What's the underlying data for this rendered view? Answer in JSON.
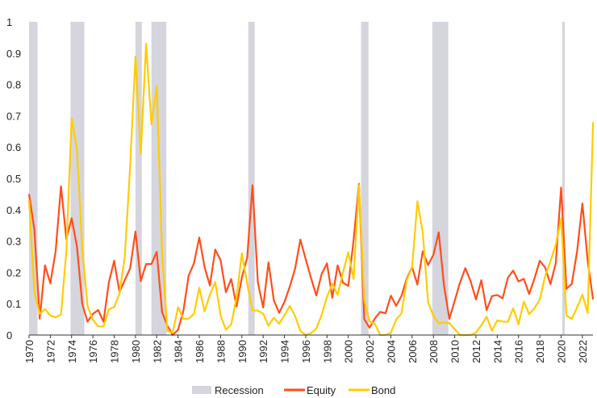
{
  "chart_data": {
    "type": "line",
    "title": "",
    "xlabel": "",
    "ylabel": "",
    "xlim": [
      1970,
      2023.2
    ],
    "ylim": [
      0,
      1
    ],
    "yticks": [
      "0",
      "0.1",
      "0.2",
      "0.3",
      "0.4",
      "0.5",
      "0.6",
      "0.7",
      "0.8",
      "0.9",
      "1"
    ],
    "xticks": [
      "1970",
      "1972",
      "1974",
      "1976",
      "1978",
      "1980",
      "1982",
      "1984",
      "1986",
      "1988",
      "1990",
      "1992",
      "1994",
      "1996",
      "1998",
      "2000",
      "2002",
      "2004",
      "2006",
      "2008",
      "2010",
      "2012",
      "2014",
      "2016",
      "2018",
      "2020",
      "2022"
    ],
    "grid": false,
    "legend_position": "bottom-center",
    "x_start": 1970,
    "x_step": 0.5,
    "recessions": {
      "name": "Recession",
      "color": "#d5d5de",
      "periods": [
        [
          1970.0,
          1970.8
        ],
        [
          1973.9,
          1975.2
        ],
        [
          1980.0,
          1980.6
        ],
        [
          1981.5,
          1982.9
        ],
        [
          1990.6,
          1991.2
        ],
        [
          2001.2,
          2001.9
        ],
        [
          2007.9,
          2009.4
        ],
        [
          2020.1,
          2020.35
        ]
      ]
    },
    "series": [
      {
        "name": "Equity",
        "color": "#ff4e1a",
        "values": [
          0.45,
          0.3,
          0.05,
          0.2,
          0.15,
          0.25,
          0.45,
          0.3,
          0.4,
          0.3,
          0.1,
          0.05,
          0.1,
          0.08,
          0.05,
          0.15,
          0.2,
          0.12,
          0.15,
          0.2,
          0.3,
          0.15,
          0.2,
          0.25,
          0.3,
          0.1,
          0.05,
          0.02,
          0.05,
          0.1,
          0.15,
          0.2,
          0.3,
          0.2,
          0.15,
          0.25,
          0.2,
          0.1,
          0.2,
          0.1,
          0.2,
          0.25,
          0.5,
          0.2,
          0.1,
          0.2,
          0.1,
          0.05,
          0.1,
          0.15,
          0.2,
          0.3,
          0.25,
          0.2,
          0.15,
          0.2,
          0.25,
          0.15,
          0.25,
          0.2,
          0.15,
          0.3,
          0.45,
          0.05,
          0.02,
          0.05,
          0.05,
          0.1,
          0.15,
          0.12,
          0.15,
          0.2,
          0.25,
          0.2,
          0.3,
          0.2,
          0.25,
          0.3,
          0.15,
          0.05,
          0.08,
          0.15,
          0.25,
          0.2,
          0.15,
          0.2,
          0.1,
          0.15,
          0.15,
          0.12,
          0.15,
          0.2,
          0.15,
          0.15,
          0.1,
          0.15,
          0.2,
          0.25,
          0.2,
          0.25,
          0.5,
          0.15,
          0.2,
          0.3,
          0.4,
          0.2,
          0.1
        ]
      },
      {
        "name": "Bond",
        "color": "#ffcc00",
        "values": [
          0.4,
          0.1,
          0.05,
          0.08,
          0.03,
          0.05,
          0.1,
          0.3,
          0.7,
          0.6,
          0.3,
          0.1,
          0.05,
          0.03,
          0.02,
          0.05,
          0.05,
          0.1,
          0.25,
          0.5,
          0.85,
          0.6,
          0.95,
          0.7,
          0.8,
          0.3,
          0.05,
          0.03,
          0.05,
          0.03,
          0.02,
          0.05,
          0.12,
          0.05,
          0.1,
          0.15,
          0.1,
          0.05,
          0.05,
          0.15,
          0.3,
          0.2,
          0.1,
          0.05,
          0.03,
          0.02,
          0.02,
          0.01,
          0.03,
          0.08,
          0.05,
          0.03,
          0.02,
          0.03,
          0.05,
          0.08,
          0.15,
          0.2,
          0.12,
          0.2,
          0.25,
          0.15,
          0.45,
          0.1,
          0.02,
          0.03,
          0.02,
          0.01,
          0.02,
          0.05,
          0.1,
          0.2,
          0.25,
          0.4,
          0.3,
          0.1,
          0.05,
          0.03,
          0.02,
          0.01,
          0.02,
          0.03,
          0.02,
          0.01,
          0.02,
          0.05,
          0.08,
          0.05,
          0.03,
          0.02,
          0.03,
          0.05,
          0.03,
          0.08,
          0.05,
          0.1,
          0.15,
          0.2,
          0.25,
          0.3,
          0.4,
          0.1,
          0.08,
          0.05,
          0.1,
          0.05,
          0.65
        ]
      }
    ]
  }
}
